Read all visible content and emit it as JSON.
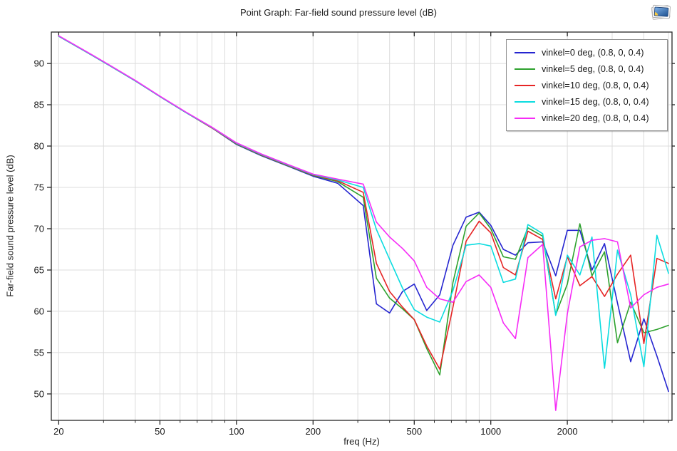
{
  "window": {
    "corner_icon": "plot-window-icon"
  },
  "colors": {
    "background": "#ffffff",
    "frame": "#262626",
    "grid": "#dcdcdc",
    "text": "#1a1a1a",
    "legend_border": "#8f8f8f"
  },
  "chart_data": {
    "type": "line",
    "title": "Point Graph: Far-field sound pressure level (dB)",
    "xlabel": "freq (Hz)",
    "ylabel": "Far-field sound pressure level (dB)",
    "x_scale": "log",
    "grid": true,
    "legend_position": "top-right",
    "xlim": [
      18.7,
      5160
    ],
    "ylim": [
      46.8,
      93.8
    ],
    "x_major_ticks": [
      20,
      50,
      100,
      200,
      500,
      1000,
      2000
    ],
    "x_major_labels": [
      "20",
      "50",
      "100",
      "200",
      "500",
      "1000",
      "2000"
    ],
    "x_minor_ticks": [
      30,
      40,
      60,
      70,
      80,
      90,
      300,
      400,
      600,
      700,
      800,
      900,
      3000,
      4000,
      5000
    ],
    "y_ticks": [
      50,
      55,
      60,
      65,
      70,
      75,
      80,
      85,
      90
    ],
    "y_tick_labels": [
      "50",
      "55",
      "60",
      "65",
      "70",
      "75",
      "80",
      "85",
      "90"
    ],
    "x": [
      20,
      25,
      31.5,
      40,
      50,
      63,
      80,
      100,
      125,
      160,
      200,
      250,
      315,
      355,
      400,
      450,
      500,
      560,
      630,
      710,
      800,
      900,
      1000,
      1120,
      1250,
      1400,
      1600,
      1800,
      2000,
      2240,
      2500,
      2800,
      3150,
      3550,
      4000,
      4500,
      5000
    ],
    "series": [
      {
        "name": "vinkel=0 deg, (0.8, 0, 0.4)",
        "color": "#2525d0",
        "values": [
          93.3,
          91.6,
          89.8,
          87.9,
          86.0,
          84.1,
          82.2,
          80.2,
          78.85,
          77.55,
          76.35,
          75.5,
          72.8,
          60.9,
          59.8,
          62.4,
          63.3,
          60.1,
          62.0,
          68.0,
          71.4,
          72.0,
          70.4,
          67.5,
          66.8,
          68.3,
          68.4,
          64.3,
          69.8,
          69.8,
          65.0,
          68.2,
          61.0,
          53.9,
          59.1,
          54.6,
          50.3
        ]
      },
      {
        "name": "vinkel=5 deg, (0.8, 0, 0.4)",
        "color": "#2da12d",
        "values": [
          93.3,
          91.6,
          89.8,
          87.9,
          86.0,
          84.1,
          82.2,
          80.25,
          78.9,
          77.6,
          76.45,
          75.7,
          73.8,
          64.0,
          61.6,
          60.3,
          59.0,
          55.5,
          52.3,
          63.5,
          70.3,
          71.9,
          70.0,
          66.6,
          66.3,
          70.1,
          69.1,
          59.6,
          63.3,
          70.6,
          64.3,
          67.2,
          56.2,
          61.1,
          57.4,
          57.8,
          58.3
        ]
      },
      {
        "name": "vinkel=10 deg, (0.8, 0, 0.4)",
        "color": "#e62525",
        "values": [
          93.3,
          91.6,
          89.8,
          87.9,
          86.0,
          84.1,
          82.2,
          80.3,
          78.95,
          77.65,
          76.5,
          75.8,
          74.4,
          65.8,
          62.4,
          60.5,
          59.0,
          55.8,
          53.0,
          60.5,
          68.5,
          70.9,
          69.5,
          65.3,
          64.4,
          69.7,
          68.7,
          61.5,
          66.6,
          63.1,
          64.2,
          61.8,
          64.5,
          66.8,
          56.1,
          66.4,
          65.8
        ]
      },
      {
        "name": "vinkel=15 deg, (0.8, 0, 0.4)",
        "color": "#0adce0",
        "values": [
          93.3,
          91.6,
          89.8,
          87.9,
          86.0,
          84.1,
          82.25,
          80.35,
          79.0,
          77.7,
          76.55,
          75.9,
          75.0,
          69.9,
          66.3,
          62.8,
          60.2,
          59.3,
          58.7,
          62.5,
          68.0,
          68.2,
          67.9,
          63.5,
          63.9,
          70.5,
          69.4,
          59.5,
          66.8,
          64.4,
          69.0,
          53.1,
          67.4,
          62.0,
          53.3,
          69.2,
          64.6
        ]
      },
      {
        "name": "vinkel=20 deg, (0.8, 0, 0.4)",
        "color": "#f62cf6",
        "values": [
          93.35,
          91.65,
          89.85,
          87.95,
          86.05,
          84.15,
          82.3,
          80.4,
          79.05,
          77.75,
          76.6,
          76.0,
          75.4,
          70.8,
          69.0,
          67.6,
          66.1,
          62.9,
          61.5,
          61.1,
          63.6,
          64.4,
          62.9,
          58.6,
          56.7,
          66.5,
          68.1,
          48.0,
          59.7,
          67.8,
          68.6,
          68.8,
          68.4,
          60.4,
          62.0,
          62.9,
          63.3
        ]
      }
    ]
  }
}
